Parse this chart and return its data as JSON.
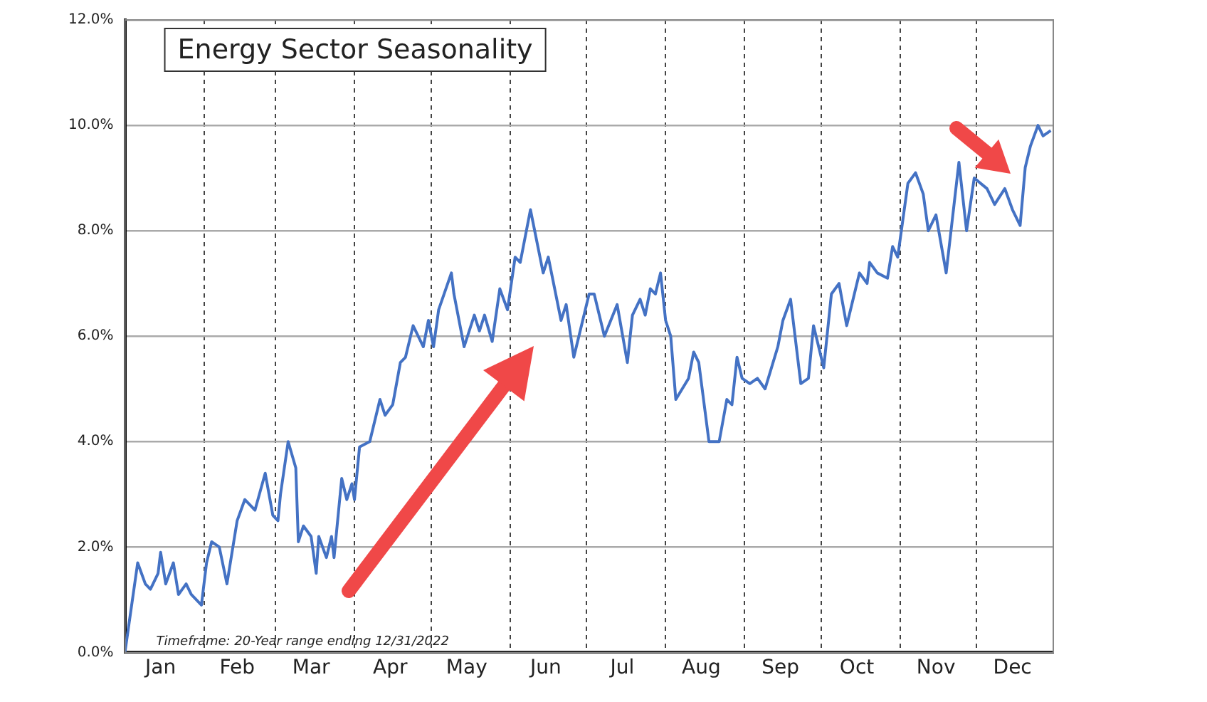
{
  "chart_data": {
    "type": "line",
    "title": "Energy Sector Seasonality",
    "annotations": [
      "Timeframe: 20-Year range ending 12/31/2022"
    ],
    "x": [
      "--01-01",
      "--01-06",
      "--01-09",
      "--01-11",
      "--01-14",
      "--01-15",
      "--01-17",
      "--01-20",
      "--01-22",
      "--01-25",
      "--01-27",
      "--01-31",
      "--02-02",
      "--02-04",
      "--02-07",
      "--02-10",
      "--02-14",
      "--02-17",
      "--02-21",
      "--02-25",
      "--02-28",
      "--03-02",
      "--03-03",
      "--03-06",
      "--03-09",
      "--03-10",
      "--03-12",
      "--03-15",
      "--03-17",
      "--03-18",
      "--03-21",
      "--03-23",
      "--03-24",
      "--03-27",
      "--03-29",
      "--03-31",
      "--04-01",
      "--04-03",
      "--04-07",
      "--04-11",
      "--04-13",
      "--04-16",
      "--04-19",
      "--04-21",
      "--04-24",
      "--04-28",
      "--04-30",
      "--05-02",
      "--05-04",
      "--05-09",
      "--05-10",
      "--05-14",
      "--05-18",
      "--05-20",
      "--05-22",
      "--05-25",
      "--05-28",
      "--05-31",
      "--06-03",
      "--06-05",
      "--06-09",
      "--06-14",
      "--06-16",
      "--06-21",
      "--06-23",
      "--06-26",
      "--07-02",
      "--07-04",
      "--07-08",
      "--07-13",
      "--07-17",
      "--07-19",
      "--07-22",
      "--07-24",
      "--07-26",
      "--07-28",
      "--07-30",
      "--08-01",
      "--08-03",
      "--08-05",
      "--08-10",
      "--08-12",
      "--08-14",
      "--08-18",
      "--08-22",
      "--08-25",
      "--08-27",
      "--08-29",
      "--08-31",
      "--09-03",
      "--09-06",
      "--09-09",
      "--09-14",
      "--09-16",
      "--09-19",
      "--09-23",
      "--09-26",
      "--09-28",
      "--10-02",
      "--10-05",
      "--10-08",
      "--10-11",
      "--10-14",
      "--10-16",
      "--10-19",
      "--10-20",
      "--10-23",
      "--10-27",
      "--10-29",
      "--10-31",
      "--11-04",
      "--11-07",
      "--11-10",
      "--11-12",
      "--11-15",
      "--11-19",
      "--11-24",
      "--11-27",
      "--11-30",
      "--12-05",
      "--12-08",
      "--12-12",
      "--12-15",
      "--12-18",
      "--12-20",
      "--12-22",
      "--12-25",
      "--12-27",
      "--12-30"
    ],
    "series": [
      {
        "color": "#4472c4",
        "values": [
          0,
          1.7,
          1.3,
          1.2,
          1.5,
          1.9,
          1.3,
          1.7,
          1.1,
          1.3,
          1.1,
          0.9,
          1.7,
          2.1,
          2.0,
          1.3,
          2.5,
          2.9,
          2.7,
          3.4,
          2.6,
          2.5,
          3.0,
          4.0,
          3.5,
          2.1,
          2.4,
          2.2,
          1.5,
          2.2,
          1.8,
          2.2,
          1.8,
          3.3,
          2.9,
          3.2,
          2.9,
          3.9,
          4.0,
          4.8,
          4.5,
          4.7,
          5.5,
          5.6,
          6.2,
          5.8,
          6.3,
          5.8,
          6.5,
          7.2,
          6.8,
          5.8,
          6.4,
          6.1,
          6.4,
          5.9,
          6.9,
          6.5,
          7.5,
          7.4,
          8.4,
          7.2,
          7.5,
          6.3,
          6.6,
          5.6,
          6.8,
          6.8,
          6.0,
          6.6,
          5.5,
          6.4,
          6.7,
          6.4,
          6.9,
          6.8,
          7.2,
          6.3,
          6.0,
          4.8,
          5.2,
          5.7,
          5.5,
          4.0,
          4.0,
          4.8,
          4.7,
          5.6,
          5.2,
          5.1,
          5.2,
          5.0,
          5.8,
          6.3,
          6.7,
          5.1,
          5.2,
          6.2,
          5.4,
          6.8,
          7.0,
          6.2,
          6.8,
          7.2,
          7.0,
          7.4,
          7.2,
          7.1,
          7.7,
          7.5,
          8.9,
          9.1,
          8.7,
          8.0,
          8.3,
          7.2,
          9.3,
          8.0,
          9.0,
          8.8,
          8.5,
          8.8,
          8.4,
          8.1,
          9.2,
          9.6,
          10.0,
          9.8,
          9.9
        ]
      }
    ],
    "xlim": [
      "--01-01",
      "--12-31"
    ],
    "xticks": [
      {
        "value": "--01-01",
        "label": null
      },
      {
        "value": "--01-15",
        "label": "Jan"
      },
      {
        "value": "--02-01",
        "label": null
      },
      {
        "value": "--02-14",
        "label": "Feb"
      },
      {
        "value": "--03-01",
        "label": null
      },
      {
        "value": "--03-15",
        "label": "Mar"
      },
      {
        "value": "--04-01",
        "label": null
      },
      {
        "value": "--04-15",
        "label": "Apr"
      },
      {
        "value": "--05-01",
        "label": null
      },
      {
        "value": "--05-15",
        "label": "May"
      },
      {
        "value": "--06-01",
        "label": null
      },
      {
        "value": "--06-15",
        "label": "Jun"
      },
      {
        "value": "--07-01",
        "label": null
      },
      {
        "value": "--07-15",
        "label": "Jul"
      },
      {
        "value": "--08-01",
        "label": null
      },
      {
        "value": "--08-15",
        "label": "Aug"
      },
      {
        "value": "--09-01",
        "label": null
      },
      {
        "value": "--09-15",
        "label": "Sep"
      },
      {
        "value": "--10-01",
        "label": null
      },
      {
        "value": "--10-15",
        "label": "Oct"
      },
      {
        "value": "--11-01",
        "label": null
      },
      {
        "value": "--11-15",
        "label": "Nov"
      },
      {
        "value": "--12-01",
        "label": null
      },
      {
        "value": "--12-15",
        "label": "Dec"
      }
    ],
    "ylim": [
      0,
      12
    ],
    "yticks": [
      {
        "value": 0,
        "label": "0.0%"
      },
      {
        "value": 2,
        "label": "2.0%"
      },
      {
        "value": 4,
        "label": "4.0%"
      },
      {
        "value": 6,
        "label": "6.0%"
      },
      {
        "value": 8,
        "label": "8.0%"
      },
      {
        "value": 10,
        "label": "10.0%"
      },
      {
        "value": 12,
        "label": "12.0%"
      }
    ],
    "grid": true,
    "legend": false,
    "marker": "none",
    "line_style": "solid"
  }
}
